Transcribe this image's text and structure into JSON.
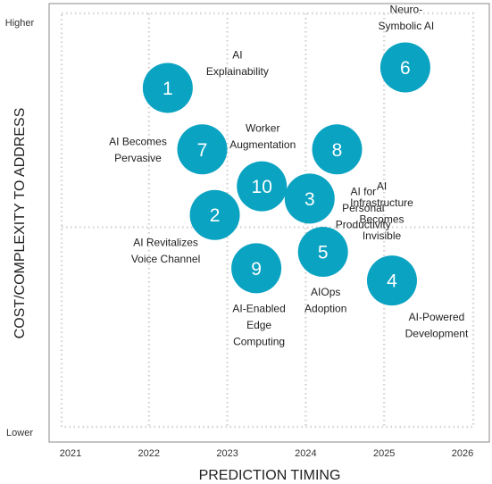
{
  "chart_data": {
    "type": "scatter",
    "xlabel": "PREDICTION TIMING",
    "ylabel": "COST/COMPLEXITY TO ADDRESS",
    "x_ticks": [
      "2021",
      "2022",
      "2023",
      "2024",
      "2025",
      "2026"
    ],
    "xlim": [
      2021,
      2026
    ],
    "y_ticks": [
      "Lower",
      "Higher"
    ],
    "ylim": [
      0,
      10
    ],
    "grid": true,
    "bubble_color": "#0aa3c2",
    "points": [
      {
        "id": "1",
        "label": "AI Explainability",
        "label_lines": [
          "AI",
          "Explainability"
        ],
        "x": 2022.24,
        "y": 8.4,
        "label_pos": "upper-right"
      },
      {
        "id": "2",
        "label": "AI Revitalizes Voice Channel",
        "label_lines": [
          "AI Revitalizes",
          "Voice Channel"
        ],
        "x": 2022.84,
        "y": 5.3,
        "label_pos": "below-left"
      },
      {
        "id": "3",
        "label": "AI for Personal Productivity",
        "label_lines": [
          "AI for",
          "Personal",
          "Productivity"
        ],
        "x": 2024.05,
        "y": 5.7,
        "label_pos": "right"
      },
      {
        "id": "4",
        "label": "AI-Powered Development",
        "label_lines": [
          "AI-Powered",
          "Development"
        ],
        "x": 2025.1,
        "y": 3.7,
        "label_pos": "below-right"
      },
      {
        "id": "5",
        "label": "AIOps Adoption",
        "label_lines": [
          "AIOps",
          "Adoption"
        ],
        "x": 2024.22,
        "y": 4.4,
        "label_pos": "below"
      },
      {
        "id": "6",
        "label": "Neuro-Symbolic AI",
        "label_lines": [
          "Neuro-",
          "Symbolic AI"
        ],
        "x": 2025.27,
        "y": 8.9,
        "label_pos": "above"
      },
      {
        "id": "7",
        "label": "AI Becomes Pervasive",
        "label_lines": [
          "AI Becomes",
          "Pervasive"
        ],
        "x": 2022.68,
        "y": 6.9,
        "label_pos": "left"
      },
      {
        "id": "8",
        "label": "AI Infrastructure Becomes Invisible",
        "label_lines": [
          "AI",
          "Infrastructure",
          "Becomes",
          "Invisible"
        ],
        "x": 2024.4,
        "y": 6.9,
        "label_pos": "below-right"
      },
      {
        "id": "9",
        "label": "AI-Enabled Edge Computing",
        "label_lines": [
          "AI-Enabled",
          "Edge",
          "Computing"
        ],
        "x": 2023.37,
        "y": 4.0,
        "label_pos": "below"
      },
      {
        "id": "10",
        "label": "Worker Augmentation",
        "label_lines": [
          "Worker",
          "Augmentation"
        ],
        "x": 2023.44,
        "y": 6.0,
        "label_pos": "above"
      }
    ]
  }
}
